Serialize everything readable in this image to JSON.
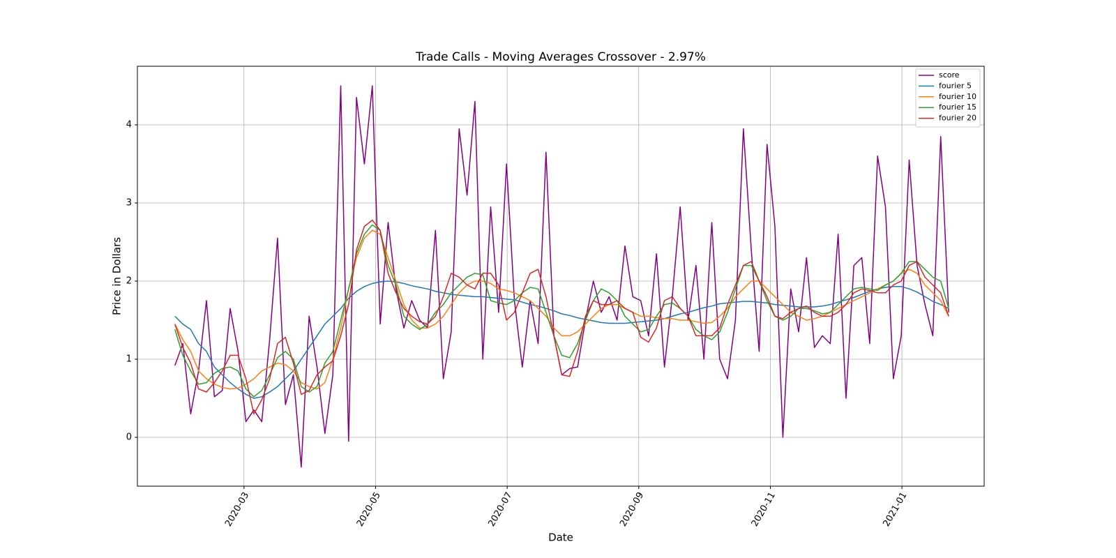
{
  "chart_data": {
    "type": "line",
    "title": "Trade Calls - Moving Averages Crossover - 2.97%",
    "x_label": "Date",
    "y_label": "Price in Dollars",
    "x": [
      1.95,
      2.07,
      2.19,
      2.31,
      2.43,
      2.55,
      2.67,
      2.79,
      2.91,
      3.03,
      3.15,
      3.27,
      3.39,
      3.51,
      3.63,
      3.75,
      3.87,
      3.99,
      4.11,
      4.23,
      4.35,
      4.47,
      4.59,
      4.71,
      4.83,
      4.95,
      5.07,
      5.19,
      5.31,
      5.43,
      5.55,
      5.67,
      5.79,
      5.91,
      6.03,
      6.15,
      6.27,
      6.39,
      6.51,
      6.63,
      6.75,
      6.87,
      6.99,
      7.11,
      7.23,
      7.35,
      7.47,
      7.59,
      7.71,
      7.83,
      7.95,
      8.07,
      8.19,
      8.31,
      8.43,
      8.55,
      8.67,
      8.79,
      8.91,
      9.03,
      9.15,
      9.27,
      9.39,
      9.51,
      9.63,
      9.75,
      9.87,
      9.99,
      10.11,
      10.23,
      10.35,
      10.47,
      10.59,
      10.71,
      10.83,
      10.95,
      11.07,
      11.19,
      11.31,
      11.43,
      11.55,
      11.67,
      11.79,
      11.91,
      12.03,
      12.15,
      12.27,
      12.39,
      12.51,
      12.63,
      12.75,
      12.87,
      12.99,
      13.11,
      13.23,
      13.35,
      13.47,
      13.59,
      13.71
    ],
    "series": [
      {
        "name": "score",
        "color": "#800080",
        "values": [
          0.92,
          1.2,
          0.3,
          0.85,
          1.75,
          0.52,
          0.6,
          1.65,
          1.1,
          0.2,
          0.35,
          0.2,
          1.25,
          2.55,
          0.42,
          0.8,
          -0.38,
          1.55,
          0.9,
          0.05,
          0.8,
          4.5,
          -0.05,
          4.35,
          3.5,
          4.5,
          1.45,
          2.75,
          1.9,
          1.4,
          1.75,
          1.5,
          1.4,
          2.65,
          0.75,
          1.35,
          3.95,
          3.1,
          4.3,
          1.0,
          2.95,
          1.6,
          3.5,
          1.75,
          0.9,
          1.75,
          1.2,
          3.65,
          1.3,
          0.8,
          0.88,
          0.9,
          1.5,
          2.0,
          1.6,
          1.8,
          1.5,
          2.45,
          1.8,
          1.75,
          1.3,
          2.35,
          0.9,
          1.8,
          2.95,
          1.5,
          2.2,
          1.0,
          2.75,
          1.0,
          0.75,
          1.5,
          3.95,
          2.4,
          1.1,
          3.75,
          2.7,
          0.0,
          1.9,
          1.35,
          2.3,
          1.15,
          1.3,
          1.2,
          2.6,
          0.5,
          2.2,
          2.3,
          1.2,
          3.6,
          2.95,
          0.75,
          1.3,
          3.55,
          2.2,
          1.7,
          1.3,
          3.85,
          1.6
        ]
      },
      {
        "name": "fourier 5",
        "color": "#1f77b4",
        "values": [
          1.55,
          1.45,
          1.38,
          1.2,
          1.1,
          0.9,
          0.8,
          0.7,
          0.62,
          0.55,
          0.5,
          0.52,
          0.58,
          0.65,
          0.75,
          0.85,
          1.0,
          1.15,
          1.3,
          1.45,
          1.55,
          1.65,
          1.78,
          1.87,
          1.93,
          1.97,
          1.99,
          2.0,
          1.99,
          1.97,
          1.94,
          1.92,
          1.9,
          1.87,
          1.85,
          1.83,
          1.82,
          1.81,
          1.8,
          1.8,
          1.79,
          1.78,
          1.77,
          1.76,
          1.73,
          1.7,
          1.68,
          1.65,
          1.62,
          1.58,
          1.56,
          1.53,
          1.51,
          1.49,
          1.47,
          1.46,
          1.46,
          1.46,
          1.47,
          1.48,
          1.49,
          1.5,
          1.52,
          1.55,
          1.58,
          1.6,
          1.63,
          1.66,
          1.68,
          1.71,
          1.72,
          1.73,
          1.74,
          1.74,
          1.73,
          1.72,
          1.7,
          1.69,
          1.68,
          1.67,
          1.67,
          1.67,
          1.68,
          1.7,
          1.73,
          1.76,
          1.79,
          1.83,
          1.87,
          1.9,
          1.92,
          1.93,
          1.93,
          1.9,
          1.86,
          1.8,
          1.74,
          1.7,
          1.65
        ]
      },
      {
        "name": "fourier 10",
        "color": "#ff7f0e",
        "values": [
          1.45,
          1.25,
          1.1,
          0.85,
          0.75,
          0.68,
          0.64,
          0.62,
          0.63,
          0.68,
          0.75,
          0.85,
          0.9,
          0.95,
          0.93,
          0.85,
          0.7,
          0.65,
          0.62,
          0.7,
          1.0,
          1.4,
          1.9,
          2.3,
          2.55,
          2.65,
          2.6,
          2.3,
          2.0,
          1.7,
          1.5,
          1.4,
          1.4,
          1.45,
          1.55,
          1.7,
          1.85,
          1.95,
          2.0,
          2.0,
          1.97,
          1.9,
          1.88,
          1.85,
          1.8,
          1.75,
          1.65,
          1.55,
          1.4,
          1.3,
          1.3,
          1.35,
          1.45,
          1.55,
          1.65,
          1.7,
          1.7,
          1.65,
          1.6,
          1.55,
          1.55,
          1.53,
          1.52,
          1.52,
          1.5,
          1.5,
          1.48,
          1.46,
          1.47,
          1.55,
          1.65,
          1.8,
          1.9,
          2.0,
          2.0,
          1.9,
          1.8,
          1.7,
          1.6,
          1.55,
          1.5,
          1.52,
          1.55,
          1.6,
          1.65,
          1.7,
          1.75,
          1.8,
          1.85,
          1.9,
          1.95,
          2.0,
          2.1,
          2.15,
          2.1,
          1.95,
          1.85,
          1.75,
          1.55
        ]
      },
      {
        "name": "fourier 15",
        "color": "#2ca02c",
        "values": [
          1.38,
          1.05,
          0.85,
          0.68,
          0.7,
          0.82,
          0.88,
          0.9,
          0.85,
          0.62,
          0.52,
          0.6,
          0.8,
          1.02,
          1.1,
          1.0,
          0.65,
          0.58,
          0.65,
          0.95,
          1.1,
          1.5,
          1.9,
          2.35,
          2.6,
          2.72,
          2.65,
          2.2,
          1.95,
          1.55,
          1.45,
          1.38,
          1.45,
          1.6,
          1.7,
          1.85,
          1.95,
          2.05,
          2.1,
          2.08,
          1.75,
          1.72,
          1.7,
          1.75,
          1.85,
          1.92,
          1.9,
          1.6,
          1.3,
          1.05,
          1.02,
          1.2,
          1.5,
          1.75,
          1.9,
          1.85,
          1.75,
          1.55,
          1.45,
          1.35,
          1.38,
          1.55,
          1.7,
          1.72,
          1.65,
          1.55,
          1.38,
          1.3,
          1.25,
          1.35,
          1.6,
          1.9,
          2.2,
          2.2,
          2.0,
          1.75,
          1.55,
          1.5,
          1.55,
          1.65,
          1.65,
          1.62,
          1.58,
          1.6,
          1.7,
          1.8,
          1.9,
          1.92,
          1.9,
          1.88,
          1.95,
          2.0,
          2.1,
          2.25,
          2.25,
          2.15,
          2.05,
          2.0,
          1.65
        ]
      },
      {
        "name": "fourier 20",
        "color": "#d62728",
        "values": [
          1.45,
          1.15,
          0.95,
          0.62,
          0.58,
          0.7,
          0.85,
          1.05,
          1.05,
          0.75,
          0.3,
          0.48,
          0.75,
          1.2,
          1.28,
          0.95,
          0.55,
          0.6,
          0.8,
          0.9,
          0.98,
          1.3,
          1.7,
          2.4,
          2.7,
          2.78,
          2.65,
          2.1,
          1.85,
          1.65,
          1.55,
          1.48,
          1.45,
          1.55,
          1.8,
          2.1,
          2.05,
          1.95,
          1.9,
          2.1,
          2.1,
          1.95,
          1.5,
          1.6,
          1.85,
          2.1,
          2.15,
          1.8,
          1.3,
          0.8,
          0.78,
          1.1,
          1.55,
          1.75,
          1.7,
          1.7,
          1.75,
          1.65,
          1.6,
          1.28,
          1.22,
          1.4,
          1.75,
          1.8,
          1.65,
          1.55,
          1.3,
          1.3,
          1.3,
          1.4,
          1.7,
          1.95,
          2.2,
          2.25,
          2.0,
          1.8,
          1.55,
          1.52,
          1.6,
          1.65,
          1.68,
          1.6,
          1.55,
          1.55,
          1.6,
          1.7,
          1.85,
          1.9,
          1.88,
          1.85,
          1.85,
          1.95,
          2.0,
          2.2,
          2.25,
          2.05,
          1.95,
          1.85,
          1.55
        ]
      }
    ],
    "xlim": [
      1.38,
      14.25
    ],
    "xticks": [
      {
        "value": 3,
        "label": "2020-03"
      },
      {
        "value": 5,
        "label": "2020-05"
      },
      {
        "value": 7,
        "label": "2020-07"
      },
      {
        "value": 9,
        "label": "2020-09"
      },
      {
        "value": 11,
        "label": "2020-11"
      },
      {
        "value": 13,
        "label": "2021-01"
      }
    ],
    "ylim": [
      -0.625,
      4.75
    ],
    "yticks": [
      0,
      1,
      2,
      3,
      4
    ],
    "grid": true,
    "legend": "upper right"
  }
}
